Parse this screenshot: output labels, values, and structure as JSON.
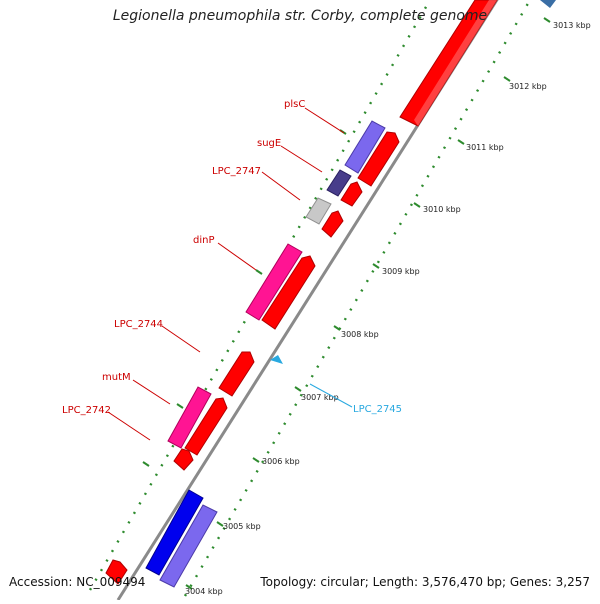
{
  "title": "Legionella pneumophila str. Corby, complete genome",
  "accession_text": "Accession: NC_009494",
  "summary_text": "Topology: circular; Length: 3,576,470 bp; Genes: 3,257",
  "colors": {
    "backbone": "#808080",
    "cds": "#ff0000",
    "label_red": "#cc0000",
    "label_cyan": "#29a9e0",
    "tick": "#2e8b2e"
  },
  "ticks": [
    "3004 kbp",
    "3005 kbp",
    "3006 kbp",
    "3007 kbp",
    "3008 kbp",
    "3009 kbp",
    "3010 kbp",
    "3011 kbp",
    "3012 kbp",
    "3013 kbp"
  ],
  "gene_labels": [
    {
      "text": "plsC",
      "color": "#cc0000"
    },
    {
      "text": "sugE",
      "color": "#cc0000"
    },
    {
      "text": "LPC_2747",
      "color": "#cc0000"
    },
    {
      "text": "dinP",
      "color": "#cc0000"
    },
    {
      "text": "LPC_2744",
      "color": "#cc0000"
    },
    {
      "text": "mutM",
      "color": "#cc0000"
    },
    {
      "text": "LPC_2742",
      "color": "#cc0000"
    },
    {
      "text": "LPC_2745",
      "color": "#29a9e0"
    }
  ]
}
